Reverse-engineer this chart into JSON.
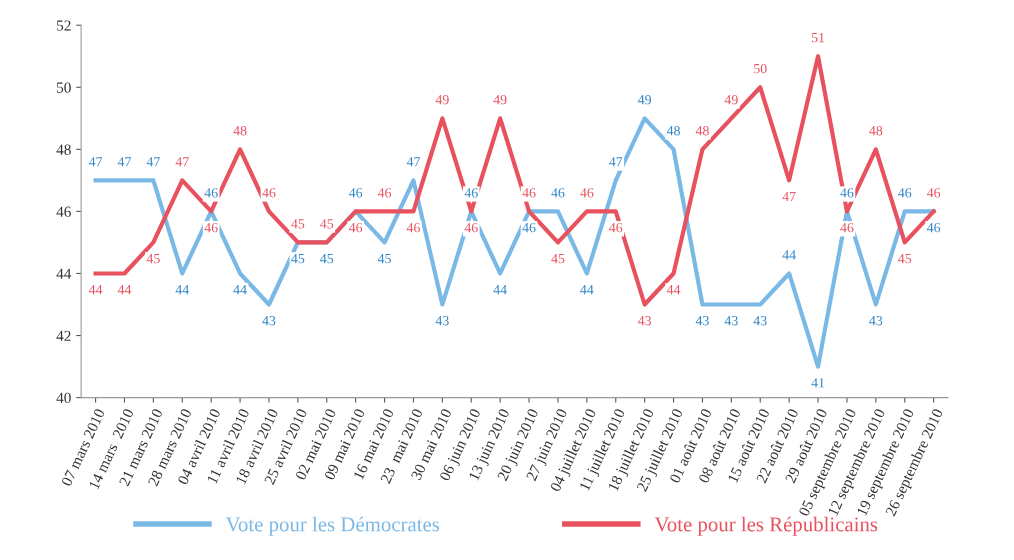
{
  "chart_data": {
    "type": "line",
    "categories": [
      "07 mars 2010",
      "14 mars  2010",
      "21 mars 2010",
      "28 mars 2010",
      "04 avril 2010",
      "11 avril 2010",
      "18 avril 2010",
      "25 avril 2010",
      "02 mai 2010",
      "09 mai 2010",
      "16 mai 2010",
      "23  mai 2010",
      "30 mai 2010",
      "06 juin 2010",
      "13 juin 2010",
      "20 juin 2010",
      "27 juin 2010",
      "04 juillet 2010",
      "11 juillet 2010",
      "18 juillet 2010",
      "25 juillet 2010",
      "01 août 2010",
      "08 août 2010",
      "15 août 2010",
      "22 août 2010",
      "29 août 2010",
      "05 septembre 2010",
      "12 septembre 2010",
      "19 septembre 2010",
      "26 septembre 2010"
    ],
    "series": [
      {
        "name": "Vote pour les Démocrates",
        "color": "#7ab8e6",
        "values": [
          47,
          47,
          47,
          44,
          46,
          44,
          43,
          45,
          45,
          46,
          45,
          47,
          43,
          46,
          44,
          46,
          46,
          44,
          47,
          49,
          48,
          43,
          43,
          43,
          44,
          41,
          46,
          43,
          46,
          46
        ]
      },
      {
        "name": "Vote pour les Républicains",
        "color": "#e8525e",
        "values": [
          44,
          44,
          45,
          47,
          46,
          48,
          46,
          45,
          45,
          46,
          46,
          46,
          49,
          46,
          49,
          46,
          45,
          46,
          46,
          43,
          44,
          48,
          49,
          50,
          47,
          51,
          46,
          48,
          45,
          46
        ]
      }
    ],
    "ylim": [
      40,
      52
    ],
    "yticks": [
      40,
      42,
      44,
      46,
      48,
      50,
      52
    ],
    "data_labels": true,
    "grid": false,
    "legend": "bottom",
    "marker": "none",
    "line_style": "solid"
  }
}
